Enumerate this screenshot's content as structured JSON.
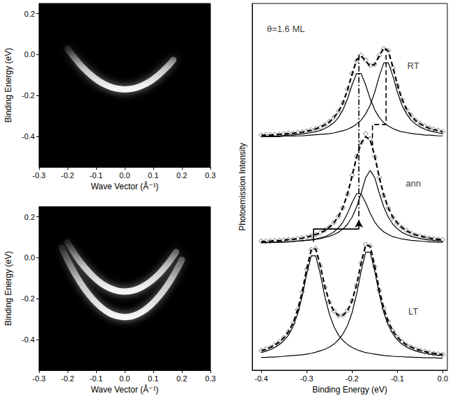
{
  "chart_data": [
    {
      "type": "band_map",
      "xlabel": "Wave Vector (Å⁻¹)",
      "ylabel": "Binding Energy (eV)",
      "xlim": [
        -0.3,
        0.3
      ],
      "xticks": [
        -0.3,
        -0.2,
        -0.1,
        {
          "value": 0,
          "label": "0.0"
        },
        0.1,
        0.2,
        0.3
      ],
      "ylim": [
        -0.55,
        0.25
      ],
      "yticks": [
        -0.4,
        -0.2,
        {
          "value": 0,
          "label": "0.0"
        },
        0.2
      ],
      "grid": false,
      "series": [
        {
          "color": "#ffffff",
          "x": [
            -0.2,
            -0.18,
            -0.15,
            -0.12,
            -0.09,
            -0.06,
            -0.03,
            0,
            0.03,
            0.06,
            0.09,
            0.12,
            0.15,
            0.17
          ],
          "values": [
            0.03,
            -0.008,
            -0.058,
            -0.098,
            -0.13,
            -0.152,
            -0.166,
            -0.17,
            -0.166,
            -0.152,
            -0.13,
            -0.098,
            -0.058,
            -0.026
          ]
        }
      ]
    },
    {
      "type": "band_map",
      "xlabel": "Wave Vector (Å⁻¹)",
      "ylabel": "Binding Energy (eV)",
      "xlim": [
        -0.3,
        0.3
      ],
      "xticks": [
        -0.3,
        -0.2,
        -0.1,
        {
          "value": 0,
          "label": "0.0"
        },
        0.1,
        0.2,
        0.3
      ],
      "ylim": [
        -0.55,
        0.25
      ],
      "yticks": [
        -0.4,
        -0.2,
        {
          "value": 0,
          "label": "0.0"
        },
        0.2
      ],
      "grid": false,
      "series": [
        {
          "color": "#ffffff",
          "x": [
            -0.2,
            -0.17,
            -0.14,
            -0.11,
            -0.08,
            -0.05,
            -0.02,
            0,
            0.03,
            0.06,
            0.09,
            0.12,
            0.15,
            0.18
          ],
          "values": [
            0.075,
            0.008,
            -0.047,
            -0.092,
            -0.127,
            -0.15,
            -0.163,
            -0.165,
            -0.16,
            -0.143,
            -0.116,
            -0.079,
            -0.03,
            0.029
          ]
        },
        {
          "color": "#ffffff",
          "x": [
            -0.22,
            -0.2,
            -0.17,
            -0.14,
            -0.11,
            -0.08,
            -0.05,
            -0.02,
            0,
            0.03,
            0.06,
            0.09,
            0.12,
            0.15,
            0.18,
            0.2
          ],
          "values": [
            0.049,
            -0.01,
            -0.088,
            -0.153,
            -0.205,
            -0.245,
            -0.273,
            -0.287,
            -0.29,
            -0.284,
            -0.265,
            -0.233,
            -0.189,
            -0.133,
            -0.063,
            -0.01
          ]
        }
      ]
    },
    {
      "type": "spectra",
      "xlabel": "Binding Energy (eV)",
      "ylabel": "Photoemission Intensity",
      "xlim": [
        -0.42,
        0.01
      ],
      "xticks": [
        -0.4,
        -0.3,
        -0.2,
        -0.1,
        {
          "value": 0,
          "label": "0.0"
        }
      ],
      "ylim": [
        0,
        100
      ],
      "tick_labels": "x",
      "grid": false,
      "x": [
        -0.4,
        -0.39,
        -0.38,
        -0.37,
        -0.36,
        -0.35,
        -0.34,
        -0.33,
        -0.32,
        -0.31,
        -0.3,
        -0.29,
        -0.28,
        -0.27,
        -0.26,
        -0.25,
        -0.24,
        -0.23,
        -0.22,
        -0.21,
        -0.2,
        -0.19,
        -0.18,
        -0.17,
        -0.16,
        -0.15,
        -0.14,
        -0.13,
        -0.12,
        -0.11,
        -0.1,
        -0.09,
        -0.08,
        -0.07,
        -0.06,
        -0.05,
        -0.04,
        -0.03,
        -0.02,
        -0.01,
        0
      ],
      "series": [
        {
          "type": "scatter",
          "marker": "open_diamond",
          "color": "#555555",
          "values": [
            64.1,
            64.2,
            64.2,
            64.3,
            64.3,
            64.5,
            64.6,
            64.6,
            64.8,
            65.0,
            65.2,
            65.5,
            65.8,
            66.2,
            66.9,
            67.8,
            69.0,
            70.6,
            73.0,
            76.6,
            80.9,
            84.4,
            85.9,
            84.6,
            83.1,
            83.4,
            85.8,
            87.7,
            87.2,
            82.5,
            77.6,
            73.8,
            71.1,
            69.5,
            68.2,
            67.3,
            66.6,
            66.1,
            65.7,
            65.4,
            65.1
          ]
        },
        {
          "type": "line",
          "line_style": "solid",
          "color": "#000000",
          "values": [
            63.7,
            63.8,
            63.8,
            63.9,
            63.9,
            64.0,
            64.1,
            64.1,
            64.3,
            64.4,
            64.6,
            64.8,
            65.0,
            65.4,
            65.9,
            66.6,
            67.5,
            68.9,
            71.0,
            74.0,
            77.8,
            80.9,
            80.9,
            77.8,
            74.0,
            71.0,
            68.9,
            67.5,
            66.6,
            65.9,
            65.4,
            65.0,
            64.8,
            64.6,
            64.4,
            64.3,
            64.1,
            64.1,
            64.0,
            63.9,
            63.9
          ]
        },
        {
          "type": "line",
          "line_style": "solid",
          "color": "#000000",
          "values": [
            63.7,
            63.7,
            63.7,
            63.7,
            63.7,
            63.8,
            63.8,
            63.8,
            63.9,
            63.9,
            64.0,
            64.1,
            64.2,
            64.3,
            64.4,
            64.5,
            64.7,
            65.0,
            65.3,
            65.7,
            66.3,
            67.1,
            68.2,
            69.9,
            72.3,
            75.8,
            80.2,
            83.8,
            83.8,
            80.2,
            75.8,
            72.3,
            69.9,
            68.2,
            67.1,
            66.3,
            65.7,
            65.3,
            65.0,
            64.7,
            64.5
          ]
        },
        {
          "type": "line",
          "line_style": "dashed",
          "color": "#000000",
          "values": [
            64.0,
            64.1,
            64.1,
            64.2,
            64.3,
            64.4,
            64.5,
            64.6,
            64.7,
            64.9,
            65.2,
            65.4,
            65.8,
            66.3,
            66.9,
            67.7,
            68.9,
            70.5,
            72.9,
            76.4,
            80.7,
            84.6,
            85.7,
            84.3,
            82.9,
            83.4,
            85.7,
            87.9,
            87.0,
            82.7,
            77.8,
            73.9,
            71.2,
            69.4,
            68.1,
            67.2,
            66.5,
            66.0,
            65.6,
            65.3,
            65.0
          ]
        },
        {
          "type": "scatter",
          "marker": "open_diamond",
          "color": "#555555",
          "values": [
            35.2,
            35.2,
            35.3,
            35.3,
            35.4,
            35.5,
            35.6,
            35.7,
            35.9,
            36.1,
            36.3,
            36.6,
            37.0,
            37.5,
            38.2,
            39.0,
            40.3,
            42.0,
            44.3,
            48.0,
            53.1,
            58.3,
            62.0,
            64.5,
            63.1,
            58.2,
            52.5,
            47.6,
            44.2,
            41.6,
            40.1,
            38.9,
            38.1,
            37.4,
            36.9,
            36.6,
            36.3,
            36.0,
            35.8,
            35.7,
            35.6
          ]
        },
        {
          "type": "line",
          "line_style": "solid",
          "color": "#000000",
          "values": [
            34.8,
            34.8,
            34.8,
            34.9,
            34.9,
            35.0,
            35.0,
            35.1,
            35.2,
            35.3,
            35.4,
            35.6,
            35.8,
            36.1,
            36.4,
            37.0,
            37.7,
            38.8,
            40.4,
            42.8,
            45.7,
            48.1,
            48.1,
            45.7,
            42.8,
            40.4,
            38.8,
            37.7,
            37.0,
            36.4,
            36.1,
            35.8,
            35.6,
            35.4,
            35.3,
            35.2,
            35.1,
            35.0,
            35.0,
            34.9,
            34.9
          ]
        },
        {
          "type": "line",
          "line_style": "solid",
          "color": "#000000",
          "values": [
            34.8,
            34.8,
            34.9,
            34.9,
            34.9,
            35.0,
            35.0,
            35.1,
            35.2,
            35.3,
            35.4,
            35.5,
            35.7,
            35.9,
            36.2,
            36.5,
            37.0,
            37.6,
            38.5,
            39.8,
            41.7,
            44.5,
            48.3,
            52.5,
            54.5,
            52.5,
            48.3,
            44.5,
            41.7,
            39.8,
            38.5,
            37.6,
            37.0,
            36.5,
            36.2,
            35.9,
            35.7,
            35.5,
            35.4,
            35.3,
            35.2
          ]
        },
        {
          "type": "line",
          "line_style": "dashed",
          "color": "#000000",
          "values": [
            35.1,
            35.1,
            35.2,
            35.3,
            35.3,
            35.4,
            35.6,
            35.7,
            35.8,
            36.0,
            36.3,
            36.6,
            37.0,
            37.4,
            38.1,
            39.0,
            40.2,
            41.9,
            44.4,
            48.1,
            52.9,
            58.1,
            61.9,
            63.7,
            62.8,
            58.4,
            52.6,
            47.7,
            44.2,
            41.7,
            40.1,
            38.9,
            38.0,
            37.4,
            36.9,
            36.6,
            36.3,
            36.0,
            35.8,
            35.7,
            35.5
          ]
        },
        {
          "type": "scatter",
          "marker": "open_diamond",
          "color": "#555555",
          "values": [
            5.4,
            5.8,
            6.2,
            6.9,
            7.8,
            8.9,
            10.5,
            12.8,
            16.5,
            21.4,
            27.5,
            32.9,
            33.2,
            28.4,
            22.7,
            18.6,
            16.2,
            14.9,
            15.0,
            16.3,
            19.0,
            23.2,
            29.3,
            34.3,
            33.9,
            28.3,
            21.8,
            16.9,
            13.3,
            10.7,
            9.0,
            7.8,
            6.9,
            6.3,
            5.8,
            5.4,
            5.1,
            4.8,
            4.6,
            4.4,
            4.3
          ]
        },
        {
          "type": "line",
          "line_style": "solid",
          "color": "#000000",
          "values": [
            4.8,
            5.2,
            5.6,
            6.2,
            7.0,
            8.1,
            9.6,
            11.9,
            15.3,
            20.1,
            26.2,
            31.2,
            31.2,
            26.2,
            20.1,
            15.3,
            11.9,
            9.6,
            8.1,
            7.0,
            6.2,
            5.6,
            5.2,
            4.8,
            4.6,
            4.4,
            4.2,
            4.0,
            3.9,
            3.8,
            3.7,
            3.7,
            3.6,
            3.6,
            3.5,
            3.5,
            3.4,
            3.4,
            3.4,
            3.3,
            3.3
          ]
        },
        {
          "type": "line",
          "line_style": "solid",
          "color": "#000000",
          "values": [
            3.5,
            3.5,
            3.6,
            3.6,
            3.7,
            3.8,
            3.9,
            4.0,
            4.1,
            4.2,
            4.4,
            4.6,
            4.9,
            5.3,
            5.7,
            6.3,
            7.1,
            8.3,
            9.9,
            12.2,
            15.7,
            20.7,
            27.0,
            32.2,
            32.2,
            27.0,
            20.7,
            15.7,
            12.2,
            9.9,
            8.3,
            7.1,
            6.3,
            5.7,
            5.3,
            4.9,
            4.6,
            4.4,
            4.2,
            4.1,
            4.0
          ]
        },
        {
          "type": "line",
          "line_style": "dashed",
          "color": "#000000",
          "values": [
            5.3,
            5.7,
            6.2,
            6.9,
            7.7,
            8.9,
            10.5,
            12.9,
            16.4,
            21.3,
            27.6,
            32.8,
            33.1,
            28.5,
            22.8,
            18.6,
            16.1,
            14.9,
            15.0,
            16.2,
            18.9,
            23.3,
            29.2,
            34.1,
            33.8,
            28.4,
            21.9,
            16.8,
            13.2,
            10.7,
            9.0,
            7.8,
            6.9,
            6.3,
            5.8,
            5.4,
            5.1,
            4.8,
            4.6,
            4.4,
            4.3
          ]
        }
      ],
      "annotations": [
        {
          "text": "θ=1.6 ML",
          "x": -0.346,
          "y": 93
        },
        {
          "text": "RT",
          "x": -0.065,
          "y": 83
        },
        {
          "text": "ann",
          "x": -0.065,
          "y": 51
        },
        {
          "text": "LT",
          "x": -0.065,
          "y": 16
        },
        {
          "x": [
            -0.285,
            -0.285,
            -0.185,
            -0.185
          ],
          "y": [
            35,
            38.5,
            38.5,
            41
          ],
          "line_style": "solid",
          "marker": "arrow"
        },
        {
          "x": [
            -0.185,
            -0.185
          ],
          "y": [
            42,
            86
          ],
          "line_style": "dashdot"
        },
        {
          "x": [
            -0.125,
            -0.125,
            -0.155,
            -0.155
          ],
          "y": [
            86,
            67,
            67,
            61
          ],
          "line_style": "dashed"
        }
      ]
    }
  ]
}
